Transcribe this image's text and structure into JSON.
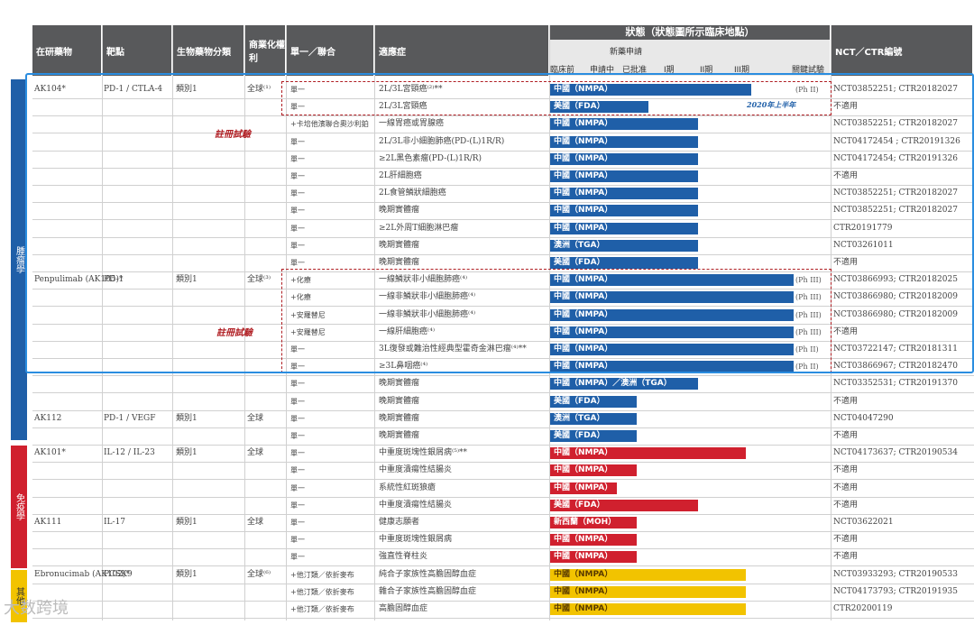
{
  "header": {
    "drug": "在研藥物",
    "target": "靶點",
    "class": "生物藥物分類",
    "rights": "商業化權利",
    "mode": "單一／聯合",
    "indication": "適應症",
    "status_title": "狀態（狀態圖所示臨床地點）",
    "status_sub": {
      "nda_group": "新藥申請",
      "preclinical": "臨床前",
      "applying": "申請中",
      "approved": "已批准",
      "ph1": "I期",
      "ph2": "II期",
      "ph3": "III期",
      "pivotal": "關鍵試驗"
    },
    "nct": "NCT／CTR編號"
  },
  "side_labels": {
    "oncology": "腫瘤學",
    "immunology": "免疫學",
    "other": "其他"
  },
  "reg_trial_label": "註冊試驗",
  "fda_note": "2020年上半年",
  "watermark": "大数跨境",
  "colors": {
    "blue": "#1f5fa8",
    "red": "#d0202e",
    "yellow": "#f2c300",
    "header": "#58595b"
  },
  "rows": [
    {
      "drug": "AK104*",
      "target": "PD-1 / CTLA-4",
      "cls": "類別1",
      "rights": "全球⁽¹⁾",
      "mode": "單一",
      "ind": "2L/3L宮頸癌⁽²⁾**",
      "bar": "中國（NMPA）",
      "color": "blue",
      "progress": 0.72,
      "phase": "(Ph II)",
      "nct": "NCT03852251; CTR20182027"
    },
    {
      "drug": "",
      "target": "",
      "cls": "",
      "rights": "",
      "mode": "單一",
      "ind": "2L/3L宮頸癌",
      "bar": "美國（FDA）",
      "color": "blue",
      "progress": 0.35,
      "phase": "",
      "nct": "不適用"
    },
    {
      "drug": "",
      "target": "",
      "cls": "",
      "rights": "",
      "mode": "+卡培他濱聯合奧沙利鉑",
      "ind": "一線胃癌或胃腺癌",
      "bar": "中國（NMPA）",
      "color": "blue",
      "progress": 0.53,
      "phase": "",
      "nct": "NCT03852251; CTR20182027"
    },
    {
      "drug": "",
      "target": "",
      "cls": "",
      "rights": "",
      "mode": "單一",
      "ind": "2L/3L非小細胞肺癌(PD-(L)1R/R)",
      "bar": "中國（NMPA）",
      "color": "blue",
      "progress": 0.53,
      "phase": "",
      "nct": "NCT04172454 ; CTR20191326"
    },
    {
      "drug": "",
      "target": "",
      "cls": "",
      "rights": "",
      "mode": "單一",
      "ind": "≥2L黑色素瘤(PD-(L)1R/R)",
      "bar": "中國（NMPA）",
      "color": "blue",
      "progress": 0.53,
      "phase": "",
      "nct": "NCT04172454; CTR20191326"
    },
    {
      "drug": "",
      "target": "",
      "cls": "",
      "rights": "",
      "mode": "單一",
      "ind": "2L肝細胞癌",
      "bar": "中國（NMPA）",
      "color": "blue",
      "progress": 0.53,
      "phase": "",
      "nct": "不適用"
    },
    {
      "drug": "",
      "target": "",
      "cls": "",
      "rights": "",
      "mode": "單一",
      "ind": "2L食管鱗狀細胞癌",
      "bar": "中國（NMPA）",
      "color": "blue",
      "progress": 0.53,
      "phase": "",
      "nct": "NCT03852251; CTR20182027"
    },
    {
      "drug": "",
      "target": "",
      "cls": "",
      "rights": "",
      "mode": "單一",
      "ind": "晚期實體瘤",
      "bar": "中國（NMPA）",
      "color": "blue",
      "progress": 0.53,
      "phase": "",
      "nct": "NCT03852251; CTR20182027"
    },
    {
      "drug": "",
      "target": "",
      "cls": "",
      "rights": "",
      "mode": "單一",
      "ind": "≥2L外周T細胞淋巴瘤",
      "bar": "中國（NMPA）",
      "color": "blue",
      "progress": 0.53,
      "phase": "",
      "nct": "CTR20191779"
    },
    {
      "drug": "",
      "target": "",
      "cls": "",
      "rights": "",
      "mode": "單一",
      "ind": "晚期實體瘤",
      "bar": "澳洲（TGA）",
      "color": "blue",
      "progress": 0.53,
      "phase": "",
      "nct": "NCT03261011"
    },
    {
      "drug": "",
      "target": "",
      "cls": "",
      "rights": "",
      "mode": "單一",
      "ind": "晚期實體瘤",
      "bar": "美國（FDA）",
      "color": "blue",
      "progress": 0.53,
      "phase": "",
      "nct": "不適用"
    },
    {
      "drug": "Penpulimab (AK105)*",
      "target": "PD-1",
      "cls": "類別1",
      "rights": "全球⁽³⁾",
      "mode": "+化療",
      "ind": "一線鱗狀非小細胞肺癌⁽⁴⁾",
      "bar": "中國（NMPA）",
      "color": "blue",
      "progress": 0.87,
      "phase": "(Ph III)",
      "nct": "NCT03866993; CTR20182025"
    },
    {
      "drug": "",
      "target": "",
      "cls": "",
      "rights": "",
      "mode": "+化療",
      "ind": "一線非鱗狀非小細胞肺癌⁽⁴⁾",
      "bar": "中國（NMPA）",
      "color": "blue",
      "progress": 0.87,
      "phase": "(Ph III)",
      "nct": "NCT03866980; CTR20182009"
    },
    {
      "drug": "",
      "target": "",
      "cls": "",
      "rights": "",
      "mode": "+安羅替尼",
      "ind": "一線非鱗狀非小細胞肺癌⁽⁴⁾",
      "bar": "中國（NMPA）",
      "color": "blue",
      "progress": 0.87,
      "phase": "(Ph III)",
      "nct": "NCT03866980; CTR20182009"
    },
    {
      "drug": "",
      "target": "",
      "cls": "",
      "rights": "",
      "mode": "+安羅替尼",
      "ind": "一線肝細胞癌⁽⁴⁾",
      "bar": "中國（NMPA）",
      "color": "blue",
      "progress": 0.87,
      "phase": "(Ph III)",
      "nct": "不適用"
    },
    {
      "drug": "",
      "target": "",
      "cls": "",
      "rights": "",
      "mode": "單一",
      "ind": "3L復發或難治性經典型霍奇金淋巴瘤⁽⁴⁾**",
      "bar": "中國（NMPA）",
      "color": "blue",
      "progress": 0.87,
      "phase": "(Ph II)",
      "nct": "NCT03722147; CTR20181311"
    },
    {
      "drug": "",
      "target": "",
      "cls": "",
      "rights": "",
      "mode": "單一",
      "ind": "≥3L鼻咽癌⁽⁴⁾",
      "bar": "中國（NMPA）",
      "color": "blue",
      "progress": 0.87,
      "phase": "(Ph II)",
      "nct": "NCT03866967; CTR20182470"
    },
    {
      "drug": "",
      "target": "",
      "cls": "",
      "rights": "",
      "mode": "單一",
      "ind": "晚期實體瘤",
      "bar": "中國（NMPA）／澳洲（TGA）",
      "color": "blue",
      "progress": 0.53,
      "phase": "",
      "nct": "NCT03352531; CTR20191370"
    },
    {
      "drug": "",
      "target": "",
      "cls": "",
      "rights": "",
      "mode": "單一",
      "ind": "晚期實體瘤",
      "bar": "美國（FDA）",
      "color": "blue",
      "progress": 0.31,
      "phase": "",
      "nct": "不適用"
    },
    {
      "drug": "AK112",
      "target": "PD-1 / VEGF",
      "cls": "類別1",
      "rights": "全球",
      "mode": "單一",
      "ind": "晚期實體瘤",
      "bar": "澳洲（TGA）",
      "color": "blue",
      "progress": 0.31,
      "phase": "",
      "nct": "NCT04047290"
    },
    {
      "drug": "",
      "target": "",
      "cls": "",
      "rights": "",
      "mode": "單一",
      "ind": "晚期實體瘤",
      "bar": "美國（FDA）",
      "color": "blue",
      "progress": 0.31,
      "phase": "",
      "nct": "不適用"
    },
    {
      "drug": "AK101*",
      "target": "IL-12 / IL-23",
      "cls": "類別1",
      "rights": "全球",
      "mode": "單一",
      "ind": "中重度斑塊性銀屑病⁽⁵⁾**",
      "bar": "中國（NMPA）",
      "color": "red",
      "progress": 0.7,
      "phase": "",
      "nct": "NCT04173637; CTR20190534"
    },
    {
      "drug": "",
      "target": "",
      "cls": "",
      "rights": "",
      "mode": "單一",
      "ind": "中重度潰瘍性結腸炎",
      "bar": "中國（NMPA）",
      "color": "red",
      "progress": 0.31,
      "phase": "",
      "nct": "不適用"
    },
    {
      "drug": "",
      "target": "",
      "cls": "",
      "rights": "",
      "mode": "單一",
      "ind": "系統性紅斑狼瘡",
      "bar": "中國（NMPA）",
      "color": "red",
      "progress": 0.24,
      "phase": "",
      "nct": "不適用"
    },
    {
      "drug": "",
      "target": "",
      "cls": "",
      "rights": "",
      "mode": "單一",
      "ind": "中重度潰瘍性結腸炎",
      "bar": "美國（FDA）",
      "color": "red",
      "progress": 0.53,
      "phase": "",
      "nct": "不適用"
    },
    {
      "drug": "AK111",
      "target": "IL-17",
      "cls": "類別1",
      "rights": "全球",
      "mode": "單一",
      "ind": "健康志願者",
      "bar": "新西蘭（MOH）",
      "color": "red",
      "progress": 0.31,
      "phase": "",
      "nct": "NCT03622021"
    },
    {
      "drug": "",
      "target": "",
      "cls": "",
      "rights": "",
      "mode": "單一",
      "ind": "中重度斑塊性銀屑病",
      "bar": "中國（NMPA）",
      "color": "red",
      "progress": 0.31,
      "phase": "",
      "nct": "不適用"
    },
    {
      "drug": "",
      "target": "",
      "cls": "",
      "rights": "",
      "mode": "單一",
      "ind": "強直性脊柱炎",
      "bar": "中國（NMPA）",
      "color": "red",
      "progress": 0.31,
      "phase": "",
      "nct": "不適用"
    },
    {
      "drug": "Ebronucimab (AK102)*",
      "target": "PCSK9",
      "cls": "類別1",
      "rights": "全球⁽⁶⁾",
      "mode": "+他汀類／依折麥布",
      "ind": "純合子家族性高膽固醇血症",
      "bar": "中國（NMPA）",
      "color": "yellow",
      "progress": 0.7,
      "phase": "",
      "nct": "NCT03933293; CTR20190533"
    },
    {
      "drug": "",
      "target": "",
      "cls": "",
      "rights": "",
      "mode": "+他汀類／依折麥布",
      "ind": "雜合子家族性高膽固醇血症",
      "bar": "中國（NMPA）",
      "color": "yellow",
      "progress": 0.7,
      "phase": "",
      "nct": "NCT04173793; CTR20191935"
    },
    {
      "drug": "",
      "target": "",
      "cls": "",
      "rights": "",
      "mode": "+他汀類／依折麥布",
      "ind": "高膽固醇血症",
      "bar": "中國（NMPA）",
      "color": "yellow",
      "progress": 0.7,
      "phase": "",
      "nct": "CTR20200119"
    }
  ]
}
